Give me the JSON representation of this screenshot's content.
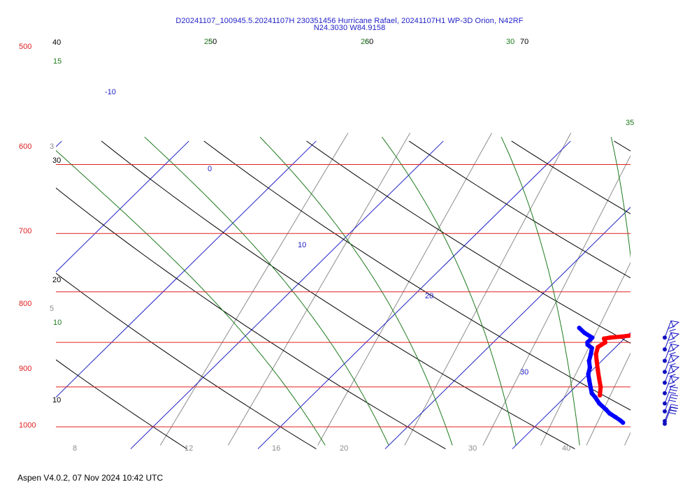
{
  "header": {
    "title_line1": "D20241107_100945.5.20241107H 230351456 Hurricane Rafael, 20241107H1 WP-3D Orion, N42RF",
    "title_line2": "N24.3030 W84.9158"
  },
  "footer": {
    "text": "Aspen V4.0.2, 07 Nov 2024  10:42 UTC"
  },
  "colors": {
    "isobar": "#e02020",
    "isotherm": "#2020c8",
    "dry_adiabat": "#000000",
    "moist_adiabat": "#1e7a1e",
    "mixing_ratio": "#8c8c8c",
    "temperature_profile": "#ff0000",
    "dewpoint_profile": "#0000ff",
    "wind_barb": "#1010c0"
  },
  "chart_data": {
    "type": "skew-t",
    "title": "D20241107_100945.5.20241107H 230351456 Hurricane Rafael, 20241107H1 WP-3D Orion, N42RF",
    "subtitle": "N24.3030 W84.9158",
    "ylim": [
      1000,
      500
    ],
    "pressure_labels": [
      "500",
      "600",
      "700",
      "800",
      "900",
      "1000"
    ],
    "isotherm_labels": [
      "-10",
      "0",
      "10",
      "20",
      "30"
    ],
    "dry_adiabat_labels": [
      "40",
      "30",
      "20",
      "10",
      "50",
      "60",
      "70"
    ],
    "moist_adiabat_labels": [
      "15",
      "10",
      "25",
      "26",
      "30",
      "35"
    ],
    "mixing_ratio_labels": [
      "3",
      "5",
      "8",
      "12",
      "16",
      "20",
      "30",
      "40"
    ],
    "temperature_profile": [
      {
        "p": 770,
        "t": 23.0
      },
      {
        "p": 772,
        "t": 22.6
      },
      {
        "p": 776,
        "t": 22.0
      },
      {
        "p": 780,
        "t": 21.6
      },
      {
        "p": 782,
        "t": 21.0
      },
      {
        "p": 785,
        "t": 20.4
      },
      {
        "p": 788,
        "t": 19.6
      },
      {
        "p": 790,
        "t": 18.8
      },
      {
        "p": 792,
        "t": 18.4
      },
      {
        "p": 800,
        "t": 18.8
      },
      {
        "p": 810,
        "t": 18.6
      },
      {
        "p": 825,
        "t": 19.0
      },
      {
        "p": 840,
        "t": 19.6
      },
      {
        "p": 860,
        "t": 20.4
      },
      {
        "p": 880,
        "t": 21.2
      },
      {
        "p": 900,
        "t": 22.0
      },
      {
        "p": 920,
        "t": 22.6
      }
    ],
    "dewpoint_profile": [
      {
        "p": 770,
        "t": 15.6
      },
      {
        "p": 780,
        "t": 16.4
      },
      {
        "p": 790,
        "t": 17.4
      },
      {
        "p": 800,
        "t": 17.4
      },
      {
        "p": 805,
        "t": 17.6
      },
      {
        "p": 812,
        "t": 18.2
      },
      {
        "p": 825,
        "t": 18.6
      },
      {
        "p": 840,
        "t": 19.0
      },
      {
        "p": 855,
        "t": 19.6
      },
      {
        "p": 870,
        "t": 20.0
      },
      {
        "p": 885,
        "t": 20.6
      },
      {
        "p": 900,
        "t": 21.2
      },
      {
        "p": 915,
        "t": 21.8
      },
      {
        "p": 925,
        "t": 22.4
      },
      {
        "p": 940,
        "t": 23.2
      },
      {
        "p": 955,
        "t": 24.2
      },
      {
        "p": 965,
        "t": 24.8
      },
      {
        "p": 975,
        "t": 25.6
      },
      {
        "p": 983,
        "t": 26.2
      },
      {
        "p": 989,
        "t": 26.6
      }
    ],
    "wind_barb_pressures": [
      790,
      815,
      840,
      865,
      890,
      915,
      940,
      960,
      985,
      992
    ]
  }
}
